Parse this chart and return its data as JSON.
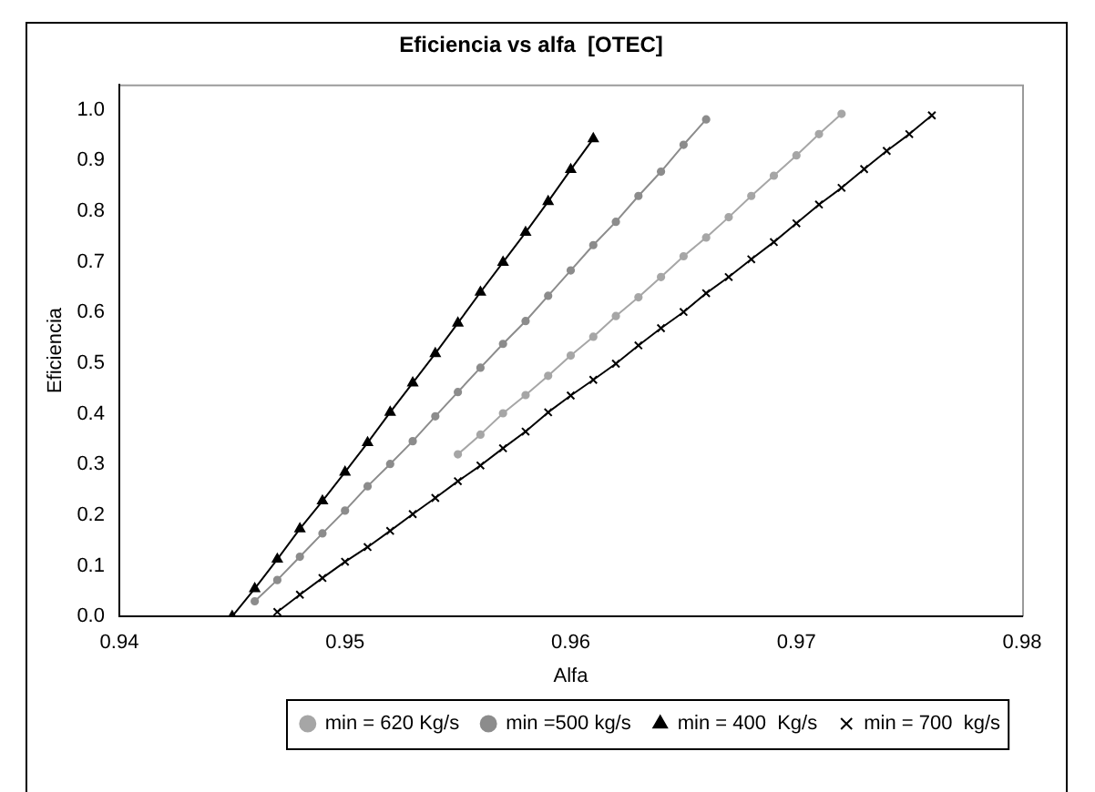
{
  "chart_data": {
    "type": "line",
    "title": "Eficiencia vs alfa  [OTEC]",
    "xlabel": "Alfa",
    "ylabel": "Eficiencia",
    "xlim": [
      0.94,
      0.98
    ],
    "xticks": [
      0.94,
      0.95,
      0.96,
      0.97,
      0.98
    ],
    "ylim": [
      0,
      1.05
    ],
    "yticks": [
      {
        "value": 0,
        "label": "0.0"
      },
      0.1,
      0.2,
      0.3,
      0.4,
      0.5,
      0.6,
      0.7,
      0.8,
      0.9,
      {
        "value": 1,
        "label": "1.0"
      }
    ],
    "grid": false,
    "legend": "bottom",
    "line_style": "solid",
    "series": [
      {
        "name": "min = 620 Kg/s",
        "color": "#a6a6a6",
        "marker": "circle",
        "x": [
          0.955,
          0.956,
          0.957,
          0.958,
          0.959,
          0.96,
          0.961,
          0.962,
          0.963,
          0.964,
          0.965,
          0.966,
          0.967,
          0.968,
          0.969,
          0.97,
          0.971,
          0.972
        ],
        "values": [
          0.32,
          0.359,
          0.401,
          0.437,
          0.475,
          0.515,
          0.552,
          0.593,
          0.63,
          0.67,
          0.711,
          0.748,
          0.788,
          0.83,
          0.87,
          0.91,
          0.952,
          0.992
        ]
      },
      {
        "name": "min =500 kg/s",
        "color": "#8c8c8c",
        "marker": "circle",
        "x": [
          0.946,
          0.947,
          0.948,
          0.949,
          0.95,
          0.951,
          0.952,
          0.953,
          0.954,
          0.955,
          0.956,
          0.957,
          0.958,
          0.959,
          0.96,
          0.961,
          0.962,
          0.963,
          0.964,
          0.965,
          0.966
        ],
        "values": [
          0.03,
          0.072,
          0.118,
          0.164,
          0.209,
          0.257,
          0.301,
          0.346,
          0.395,
          0.443,
          0.491,
          0.538,
          0.583,
          0.633,
          0.683,
          0.733,
          0.779,
          0.83,
          0.878,
          0.931,
          0.981
        ]
      },
      {
        "name": "min = 400  Kg/s",
        "color": "#000000",
        "marker": "triangle",
        "x": [
          0.945,
          0.946,
          0.947,
          0.948,
          0.949,
          0.95,
          0.951,
          0.952,
          0.953,
          0.954,
          0.955,
          0.956,
          0.957,
          0.958,
          0.959,
          0.96,
          0.961
        ],
        "values": [
          0,
          0.055,
          0.113,
          0.173,
          0.228,
          0.285,
          0.343,
          0.403,
          0.461,
          0.519,
          0.579,
          0.64,
          0.699,
          0.758,
          0.819,
          0.882,
          0.943
        ]
      },
      {
        "name": "min = 700  kg/s",
        "color": "#000000",
        "marker": "cross",
        "x": [
          0.947,
          0.948,
          0.949,
          0.95,
          0.951,
          0.952,
          0.953,
          0.954,
          0.955,
          0.956,
          0.957,
          0.958,
          0.959,
          0.96,
          0.961,
          0.962,
          0.963,
          0.964,
          0.965,
          0.966,
          0.967,
          0.968,
          0.969,
          0.97,
          0.971,
          0.972,
          0.973,
          0.974,
          0.975,
          0.976
        ],
        "values": [
          0.009,
          0.043,
          0.076,
          0.108,
          0.137,
          0.169,
          0.202,
          0.234,
          0.267,
          0.298,
          0.332,
          0.365,
          0.403,
          0.436,
          0.467,
          0.499,
          0.535,
          0.569,
          0.601,
          0.638,
          0.67,
          0.705,
          0.739,
          0.776,
          0.813,
          0.846,
          0.883,
          0.919,
          0.952,
          0.989
        ]
      }
    ]
  }
}
